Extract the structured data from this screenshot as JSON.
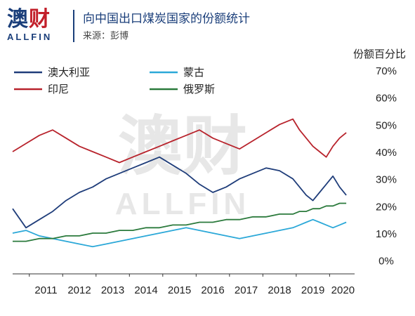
{
  "header": {
    "logo_cn_part1": "澳",
    "logo_cn_part2": "财",
    "logo_en": "ALLFIN",
    "title": "向中国出口煤炭国家的份额统计",
    "source": "来源：彭博"
  },
  "colors": {
    "australia": "#1f3d7a",
    "india": "#b8232c",
    "mongolia": "#2ba8d8",
    "russia": "#2b7a3c",
    "brand_blue": "#1a3e7a",
    "brand_red": "#c21f2a"
  },
  "chart_data": {
    "type": "line",
    "ylabel": "份额百分比",
    "ylim": [
      -5,
      70
    ],
    "yticks": [
      0,
      10,
      20,
      30,
      40,
      50,
      60,
      70
    ],
    "ytick_labels": [
      "0%",
      "10%",
      "20%",
      "30%",
      "40%",
      "50%",
      "60%",
      "70%"
    ],
    "xlim": [
      2010.5,
      2020.75
    ],
    "x_tick_labels": [
      "2011",
      "2012",
      "2013",
      "2014",
      "2015",
      "2016",
      "2017",
      "2018",
      "2019",
      "2020"
    ],
    "x_tick_positions": [
      2011.5,
      2012.5,
      2013.5,
      2014.5,
      2015.5,
      2016.5,
      2017.5,
      2018.5,
      2019.5,
      2020.4
    ],
    "legend": [
      "澳大利亚",
      "印尼",
      "蒙古",
      "俄罗斯"
    ],
    "legend_position": "top-left",
    "watermark": {
      "cn": "澳财",
      "en": "ALLFIN"
    },
    "series": [
      {
        "name": "澳大利亚",
        "x": [
          2010.5,
          2010.9,
          2011.3,
          2011.7,
          2012.1,
          2012.5,
          2012.9,
          2013.3,
          2013.7,
          2014.1,
          2014.5,
          2014.9,
          2015.3,
          2015.7,
          2016.1,
          2016.5,
          2016.9,
          2017.3,
          2017.7,
          2018.1,
          2018.5,
          2018.9,
          2019.1,
          2019.3,
          2019.5,
          2019.7,
          2019.9,
          2020.1,
          2020.3,
          2020.5
        ],
        "y": [
          19,
          12,
          15,
          18,
          22,
          25,
          27,
          30,
          32,
          34,
          36,
          38,
          35,
          32,
          28,
          25,
          27,
          30,
          32,
          34,
          33,
          30,
          27,
          24,
          22,
          25,
          28,
          31,
          27,
          24
        ]
      },
      {
        "name": "印尼",
        "x": [
          2010.5,
          2010.9,
          2011.3,
          2011.7,
          2012.1,
          2012.5,
          2012.9,
          2013.3,
          2013.7,
          2014.1,
          2014.5,
          2014.9,
          2015.3,
          2015.7,
          2016.1,
          2016.5,
          2016.9,
          2017.3,
          2017.7,
          2018.1,
          2018.5,
          2018.9,
          2019.1,
          2019.3,
          2019.5,
          2019.7,
          2019.9,
          2020.1,
          2020.3,
          2020.5
        ],
        "y": [
          40,
          43,
          46,
          48,
          45,
          42,
          40,
          38,
          36,
          38,
          40,
          42,
          44,
          46,
          48,
          45,
          43,
          41,
          44,
          47,
          50,
          52,
          48,
          45,
          42,
          40,
          38,
          42,
          45,
          47
        ]
      },
      {
        "name": "蒙古",
        "x": [
          2010.5,
          2010.9,
          2011.3,
          2011.7,
          2012.1,
          2012.5,
          2012.9,
          2013.3,
          2013.7,
          2014.1,
          2014.5,
          2014.9,
          2015.3,
          2015.7,
          2016.1,
          2016.5,
          2016.9,
          2017.3,
          2017.7,
          2018.1,
          2018.5,
          2018.9,
          2019.1,
          2019.3,
          2019.5,
          2019.7,
          2019.9,
          2020.1,
          2020.3,
          2020.5
        ],
        "y": [
          10,
          11,
          9,
          8,
          7,
          6,
          5,
          6,
          7,
          8,
          9,
          10,
          11,
          12,
          11,
          10,
          9,
          8,
          9,
          10,
          11,
          12,
          13,
          14,
          15,
          14,
          13,
          12,
          13,
          14
        ]
      },
      {
        "name": "俄罗斯",
        "x": [
          2010.5,
          2010.9,
          2011.3,
          2011.7,
          2012.1,
          2012.5,
          2012.9,
          2013.3,
          2013.7,
          2014.1,
          2014.5,
          2014.9,
          2015.3,
          2015.7,
          2016.1,
          2016.5,
          2016.9,
          2017.3,
          2017.7,
          2018.1,
          2018.5,
          2018.9,
          2019.1,
          2019.3,
          2019.5,
          2019.7,
          2019.9,
          2020.1,
          2020.3,
          2020.5
        ],
        "y": [
          7,
          7,
          8,
          8,
          9,
          9,
          10,
          10,
          11,
          11,
          12,
          12,
          13,
          13,
          14,
          14,
          15,
          15,
          16,
          16,
          17,
          17,
          18,
          18,
          19,
          19,
          20,
          20,
          21,
          21
        ]
      }
    ]
  }
}
